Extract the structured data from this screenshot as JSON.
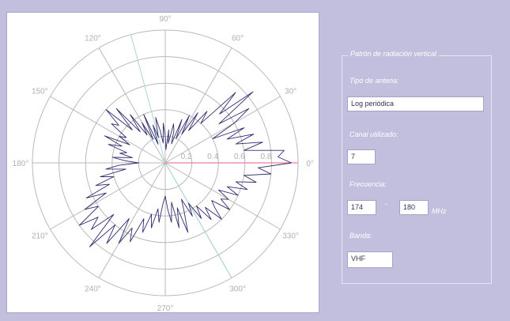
{
  "chart_data": {
    "type": "polar-line",
    "angle_labels": [
      "0°",
      "30°",
      "60°",
      "90°",
      "120°",
      "150°",
      "180°",
      "210°",
      "240°",
      "270°",
      "300°",
      "330°"
    ],
    "angle_values": [
      0,
      30,
      60,
      90,
      120,
      150,
      180,
      210,
      240,
      270,
      300,
      330
    ],
    "radial_labels": [
      "0.2",
      "0.4",
      "0.6",
      "0.8"
    ],
    "radial_values": [
      0.2,
      0.4,
      0.6,
      0.8
    ],
    "r_max": 1.0,
    "grid": true,
    "highlight_lines_deg": [
      105,
      300
    ],
    "marker_line": {
      "angle_deg": 0,
      "r": 1.0
    },
    "series": [
      {
        "angles_deg": [
          0,
          3,
          6,
          9,
          12,
          15,
          18,
          21,
          24,
          27,
          30,
          33,
          36,
          39,
          42,
          45,
          48,
          51,
          54,
          57,
          60,
          63,
          66,
          69,
          72,
          75,
          78,
          81,
          84,
          87,
          90,
          93,
          96,
          99,
          102,
          105,
          108,
          111,
          114,
          117,
          120,
          123,
          126,
          129,
          132,
          135,
          138,
          141,
          144,
          147,
          150,
          153,
          156,
          159,
          162,
          165,
          168,
          171,
          174,
          177,
          180,
          183,
          186,
          189,
          192,
          195,
          198,
          201,
          204,
          207,
          210,
          213,
          216,
          219,
          222,
          225,
          228,
          231,
          234,
          237,
          240,
          243,
          246,
          249,
          252,
          255,
          258,
          261,
          264,
          267,
          270,
          273,
          276,
          279,
          282,
          285,
          288,
          291,
          294,
          297,
          300,
          303,
          306,
          309,
          312,
          315,
          318,
          321,
          324,
          327,
          330,
          333,
          336,
          339,
          342,
          345,
          348,
          351,
          354,
          357
        ],
        "r": [
          0.95,
          0.85,
          0.9,
          0.6,
          0.75,
          0.55,
          0.7,
          0.5,
          0.65,
          0.4,
          0.6,
          0.75,
          0.5,
          0.85,
          0.55,
          0.75,
          0.4,
          0.5,
          0.3,
          0.45,
          0.25,
          0.4,
          0.2,
          0.35,
          0.15,
          0.25,
          0.3,
          0.15,
          0.25,
          0.1,
          0.2,
          0.3,
          0.15,
          0.25,
          0.35,
          0.2,
          0.3,
          0.15,
          0.4,
          0.2,
          0.35,
          0.25,
          0.45,
          0.3,
          0.55,
          0.35,
          0.6,
          0.45,
          0.5,
          0.35,
          0.4,
          0.3,
          0.5,
          0.35,
          0.45,
          0.3,
          0.35,
          0.25,
          0.4,
          0.3,
          0.2,
          0.35,
          0.45,
          0.3,
          0.5,
          0.4,
          0.55,
          0.45,
          0.65,
          0.5,
          0.7,
          0.6,
          0.8,
          0.65,
          0.75,
          0.55,
          0.85,
          0.6,
          0.75,
          0.5,
          0.7,
          0.55,
          0.65,
          0.45,
          0.55,
          0.4,
          0.5,
          0.35,
          0.45,
          0.3,
          0.25,
          0.35,
          0.45,
          0.3,
          0.5,
          0.35,
          0.55,
          0.4,
          0.3,
          0.45,
          0.35,
          0.5,
          0.4,
          0.55,
          0.45,
          0.6,
          0.5,
          0.45,
          0.6,
          0.5,
          0.55,
          0.45,
          0.6,
          0.5,
          0.65,
          0.55,
          0.7,
          0.6,
          0.8,
          0.7
        ]
      }
    ]
  },
  "panel": {
    "group_title": "Patrón de radiación vertical",
    "antenna_type": {
      "label": "Tipo de antena:",
      "value": "Log periódica"
    },
    "channel": {
      "label": "Canal utilizado:",
      "value": "7"
    },
    "frequency": {
      "label": "Frecuencia:",
      "from": "174",
      "separator": "-",
      "to": "180",
      "unit": "MHz"
    },
    "band": {
      "label": "Banda:",
      "value": "VHF"
    }
  },
  "colors": {
    "background": "#c2bedd",
    "grid": "#b9b9b9",
    "trace": "#2e2c6e",
    "highlight": "#a9d8d2",
    "marker": "#ef7d9c"
  }
}
